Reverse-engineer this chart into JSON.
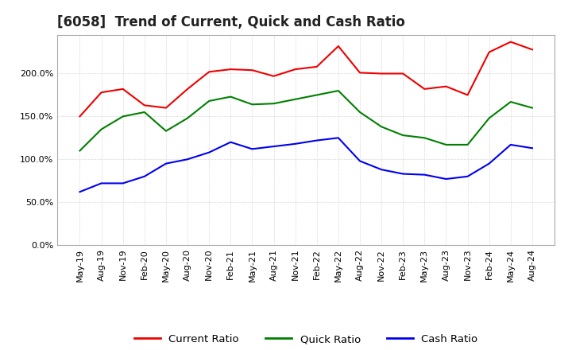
{
  "title": "[6058]  Trend of Current, Quick and Cash Ratio",
  "x_labels": [
    "May-19",
    "Aug-19",
    "Nov-19",
    "Feb-20",
    "May-20",
    "Aug-20",
    "Nov-20",
    "Feb-21",
    "May-21",
    "Aug-21",
    "Nov-21",
    "Feb-22",
    "May-22",
    "Aug-22",
    "Nov-22",
    "Feb-23",
    "May-23",
    "Aug-23",
    "Nov-23",
    "Feb-24",
    "May-24",
    "Aug-24"
  ],
  "current_ratio": [
    150.0,
    178.0,
    182.0,
    163.0,
    160.0,
    182.0,
    202.0,
    205.0,
    204.0,
    197.0,
    205.0,
    208.0,
    232.0,
    201.0,
    200.0,
    200.0,
    182.0,
    185.0,
    175.0,
    225.0,
    237.0,
    228.0
  ],
  "quick_ratio": [
    110.0,
    135.0,
    150.0,
    155.0,
    133.0,
    148.0,
    168.0,
    173.0,
    164.0,
    165.0,
    170.0,
    175.0,
    180.0,
    155.0,
    138.0,
    128.0,
    125.0,
    117.0,
    117.0,
    148.0,
    167.0,
    160.0
  ],
  "cash_ratio": [
    62.0,
    72.0,
    72.0,
    80.0,
    95.0,
    100.0,
    108.0,
    120.0,
    112.0,
    115.0,
    118.0,
    122.0,
    125.0,
    98.0,
    88.0,
    83.0,
    82.0,
    77.0,
    80.0,
    95.0,
    117.0,
    113.0
  ],
  "current_color": "#EE0000",
  "quick_color": "#008000",
  "cash_color": "#0000EE",
  "legend_labels": [
    "Current Ratio",
    "Quick Ratio",
    "Cash Ratio"
  ],
  "background_color": "#FFFFFF",
  "grid_color": "#AAAAAA",
  "title_fontsize": 12,
  "axis_fontsize": 8,
  "legend_fontsize": 9.5
}
